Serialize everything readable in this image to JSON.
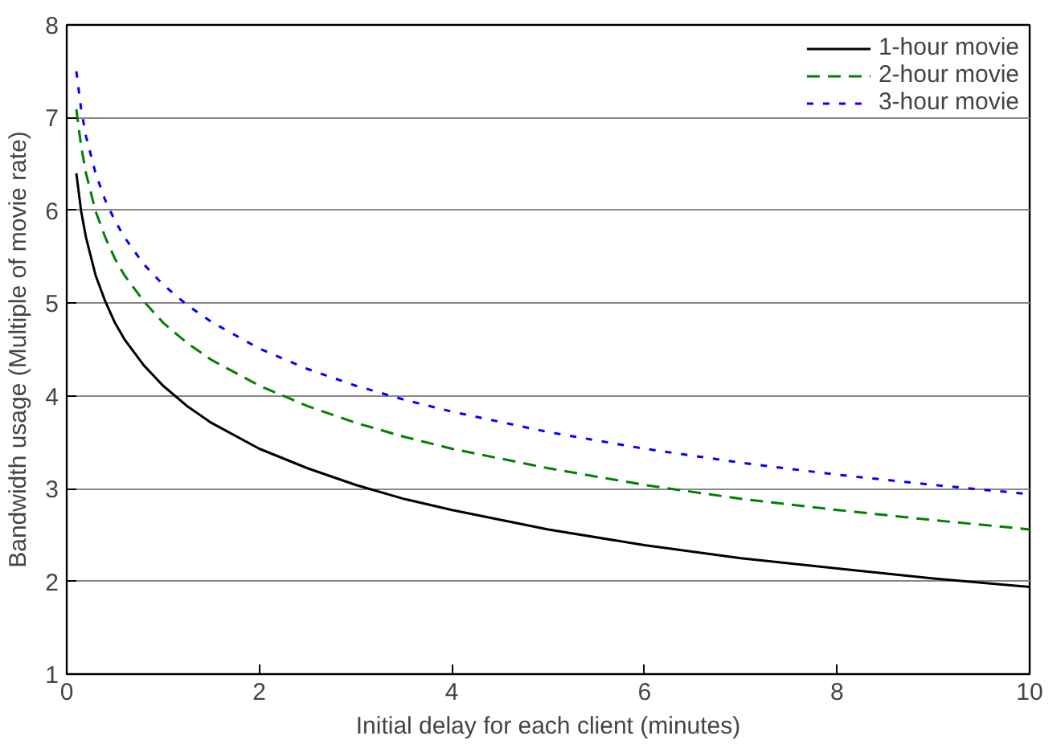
{
  "chart_data": {
    "type": "line",
    "xlabel": "Initial delay for each client (minutes)",
    "ylabel": "Bandwidth usage (Multiple of movie rate)",
    "x": [
      0.1,
      0.15,
      0.2,
      0.3,
      0.4,
      0.5,
      0.6,
      0.8,
      1,
      1.25,
      1.5,
      2,
      2.5,
      3,
      3.5,
      4,
      5,
      6,
      7,
      8,
      9,
      10
    ],
    "series": [
      {
        "name": "1-hour movie",
        "color": "#000000",
        "line_style": "solid",
        "values": [
          6.4,
          5.99,
          5.71,
          5.3,
          5.02,
          4.79,
          4.61,
          4.33,
          4.11,
          3.89,
          3.71,
          3.43,
          3.22,
          3.04,
          2.89,
          2.77,
          2.56,
          2.39,
          2.25,
          2.14,
          2.03,
          1.94
        ]
      },
      {
        "name": "2-hour movie",
        "color": "#008000",
        "line_style": "dashed",
        "values": [
          7.09,
          6.69,
          6.4,
          5.99,
          5.71,
          5.48,
          5.3,
          5.02,
          4.79,
          4.57,
          4.39,
          4.11,
          3.89,
          3.71,
          3.56,
          3.43,
          3.22,
          3.04,
          2.89,
          2.77,
          2.66,
          2.56
        ]
      },
      {
        "name": "3-hour movie",
        "color": "#0000ff",
        "line_style": "dotted",
        "values": [
          7.5,
          7.09,
          6.8,
          6.4,
          6.11,
          5.89,
          5.71,
          5.42,
          5.2,
          4.98,
          4.8,
          4.51,
          4.29,
          4.11,
          3.96,
          3.83,
          3.61,
          3.43,
          3.28,
          3.15,
          3.04,
          2.94
        ]
      }
    ],
    "xlim": [
      0,
      10
    ],
    "xticks": [
      0,
      2,
      4,
      6,
      8,
      10
    ],
    "ylim": [
      1,
      8
    ],
    "yticks": [
      1,
      2,
      3,
      4,
      5,
      6,
      7,
      8
    ],
    "grid": "y",
    "legend": "top right",
    "marker": "none"
  }
}
